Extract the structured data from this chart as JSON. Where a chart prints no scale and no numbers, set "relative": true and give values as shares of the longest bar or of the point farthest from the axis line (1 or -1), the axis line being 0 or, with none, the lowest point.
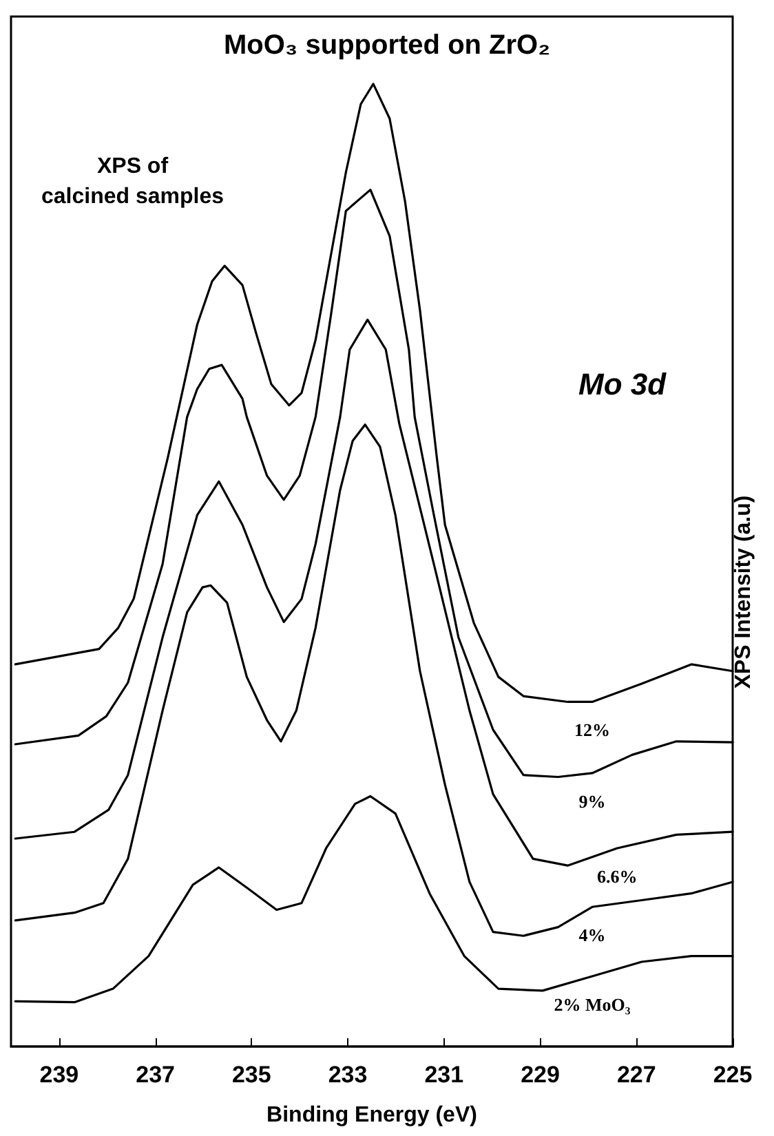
{
  "chart_data": {
    "type": "line",
    "title": "MoO₃ supported on ZrO₂",
    "xlabel": "Binding Energy (eV)",
    "ylabel": "XPS Intensity (a.u)",
    "annotations": [
      "XPS of\ncalcined samples",
      "Mo 3d"
    ],
    "relative": true,
    "xlim": [
      240,
      225
    ],
    "xticks": [
      239,
      237,
      235,
      233,
      231,
      229,
      227,
      225
    ],
    "tick_labels": "x",
    "grid": false,
    "legend": false,
    "marker": "none",
    "line_style": "solid",
    "series": [
      {
        "name": "12%",
        "color": "#000000",
        "x": [
          239.91,
          238.17,
          237.77,
          237.45,
          236.74,
          236.13,
          235.82,
          235.56,
          235.19,
          234.9,
          234.59,
          234.22,
          233.96,
          233.67,
          233.04,
          232.73,
          232.47,
          232.13,
          231.81,
          231.5,
          231.15,
          230.98,
          230.38,
          229.87,
          229.35,
          228.43,
          227.92,
          226.89,
          225.86,
          225.0
        ],
        "values": [
          0.397,
          0.413,
          0.435,
          0.465,
          0.612,
          0.75,
          0.795,
          0.811,
          0.791,
          0.74,
          0.688,
          0.666,
          0.679,
          0.734,
          0.908,
          0.979,
          1,
          0.964,
          0.878,
          0.765,
          0.612,
          0.542,
          0.44,
          0.384,
          0.364,
          0.358,
          0.358,
          0.377,
          0.397,
          0.39
        ]
      },
      {
        "name": "9%",
        "color": "#000000",
        "x": [
          239.91,
          238.6,
          238.02,
          237.57,
          236.85,
          236.34,
          236.13,
          235.88,
          235.62,
          235.19,
          235.1,
          234.68,
          234.33,
          234.0,
          233.67,
          233.35,
          233.04,
          232.53,
          232.13,
          231.73,
          231.61,
          231.21,
          230.7,
          229.98,
          229.35,
          228.63,
          227.92,
          227.09,
          226.17,
          225.0
        ],
        "values": [
          0.314,
          0.323,
          0.343,
          0.378,
          0.501,
          0.654,
          0.683,
          0.704,
          0.708,
          0.673,
          0.654,
          0.593,
          0.568,
          0.593,
          0.654,
          0.76,
          0.868,
          0.89,
          0.842,
          0.724,
          0.654,
          0.552,
          0.425,
          0.329,
          0.282,
          0.28,
          0.284,
          0.303,
          0.317,
          0.316
        ]
      },
      {
        "name": "6.6%",
        "color": "#000000",
        "x": [
          239.91,
          238.68,
          237.97,
          237.57,
          236.85,
          236.13,
          235.68,
          235.19,
          234.68,
          234.33,
          233.96,
          233.67,
          233.16,
          232.96,
          232.59,
          232.21,
          231.93,
          231.21,
          230.47,
          229.98,
          229.15,
          228.43,
          227.4,
          226.17,
          225.0
        ],
        "values": [
          0.216,
          0.223,
          0.246,
          0.282,
          0.425,
          0.552,
          0.587,
          0.542,
          0.477,
          0.441,
          0.465,
          0.522,
          0.654,
          0.724,
          0.755,
          0.724,
          0.647,
          0.501,
          0.349,
          0.262,
          0.195,
          0.188,
          0.206,
          0.22,
          0.223
        ]
      },
      {
        "name": "4%",
        "color": "#000000",
        "x": [
          239.91,
          238.68,
          238.08,
          237.57,
          236.85,
          236.34,
          236.02,
          235.85,
          235.51,
          235.1,
          234.68,
          234.39,
          234.07,
          233.67,
          233.16,
          232.9,
          232.64,
          232.33,
          232.01,
          231.5,
          230.98,
          230.47,
          229.98,
          229.35,
          228.63,
          227.92,
          226.89,
          225.86,
          225.0
        ],
        "values": [
          0.131,
          0.139,
          0.149,
          0.195,
          0.349,
          0.451,
          0.477,
          0.479,
          0.461,
          0.384,
          0.339,
          0.317,
          0.349,
          0.435,
          0.578,
          0.629,
          0.646,
          0.623,
          0.552,
          0.39,
          0.272,
          0.171,
          0.119,
          0.115,
          0.124,
          0.145,
          0.152,
          0.159,
          0.171
        ]
      },
      {
        "name": "2% MoO₃",
        "color": "#000000",
        "x": [
          239.91,
          238.68,
          237.88,
          237.14,
          236.22,
          235.68,
          235.1,
          234.48,
          233.96,
          233.45,
          232.85,
          232.53,
          232.01,
          231.3,
          230.58,
          229.87,
          228.95,
          227.92,
          226.89,
          225.86,
          225.0
        ],
        "values": [
          0.047,
          0.046,
          0.06,
          0.094,
          0.168,
          0.186,
          0.165,
          0.142,
          0.149,
          0.206,
          0.252,
          0.26,
          0.242,
          0.159,
          0.094,
          0.06,
          0.058,
          0.073,
          0.088,
          0.094,
          0.094
        ]
      }
    ]
  }
}
